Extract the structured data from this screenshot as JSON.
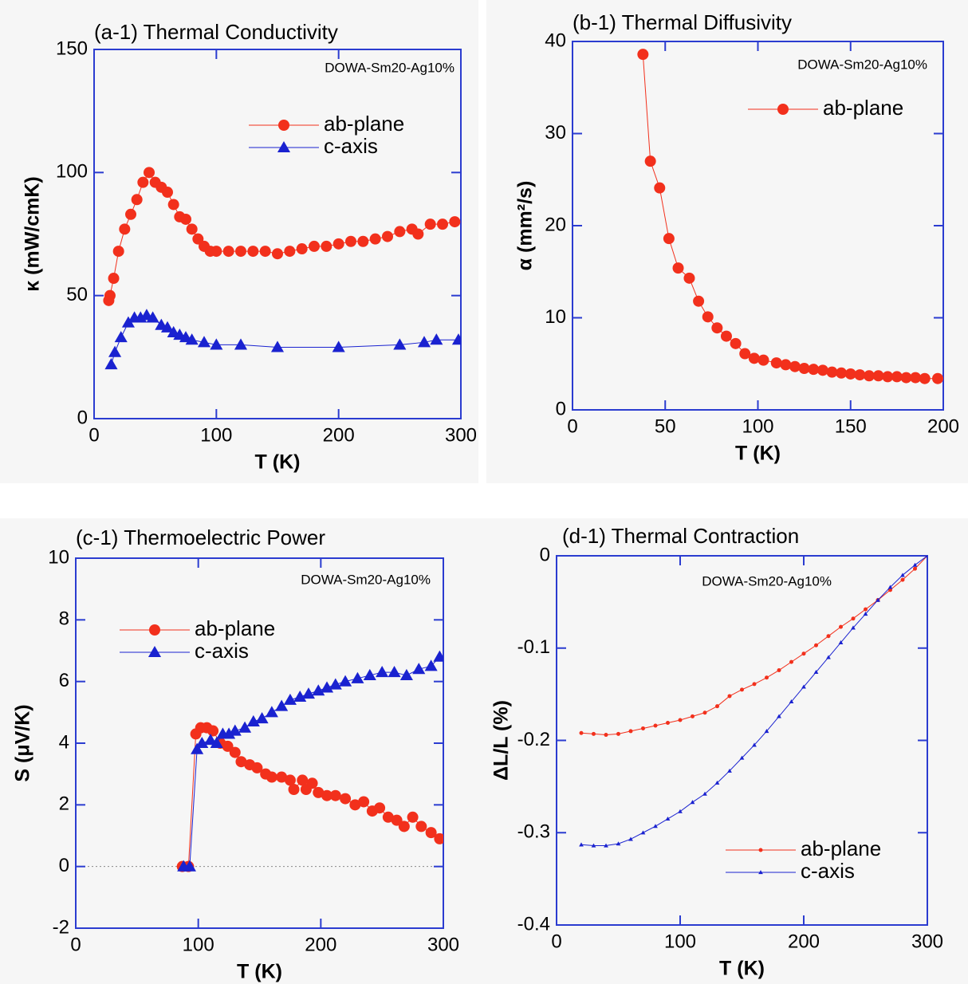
{
  "chart_data": [
    {
      "type": "line",
      "title": "(a-1) Thermal Conductivity",
      "annotation": "DOWA-Sm20-Ag10%",
      "x_label": "T (K)",
      "y_label": "κ (mW/cmK)",
      "xlim": [
        0,
        300
      ],
      "xticks": [
        0,
        100,
        200,
        300
      ],
      "ylim": [
        0,
        150
      ],
      "yticks": [
        0,
        50,
        100,
        150
      ],
      "series": [
        {
          "name": "ab-plane",
          "color": "#f2301c",
          "marker": "circle",
          "x": [
            12,
            13,
            16,
            20,
            25,
            30,
            35,
            40,
            45,
            50,
            55,
            60,
            65,
            70,
            75,
            80,
            85,
            90,
            95,
            100,
            110,
            120,
            130,
            140,
            150,
            160,
            170,
            180,
            190,
            200,
            210,
            220,
            230,
            240,
            250,
            260,
            265,
            275,
            285,
            295
          ],
          "values": [
            48,
            50,
            57,
            68,
            77,
            83,
            89,
            96,
            100,
            96,
            94,
            92,
            87,
            82,
            81,
            77,
            73,
            70,
            68,
            68,
            68,
            68,
            68,
            68,
            67,
            68,
            69,
            70,
            70,
            71,
            72,
            72,
            73,
            74,
            76,
            77,
            75,
            79,
            79,
            80
          ]
        },
        {
          "name": "c-axis",
          "color": "#1a22d0",
          "marker": "triangle",
          "x": [
            14,
            17,
            22,
            28,
            33,
            38,
            43,
            48,
            55,
            60,
            65,
            70,
            75,
            80,
            90,
            100,
            120,
            150,
            200,
            250,
            270,
            280,
            298
          ],
          "values": [
            22,
            27,
            33,
            39,
            41,
            41,
            42,
            41,
            38,
            37,
            35,
            34,
            33,
            32,
            31,
            30,
            30,
            29,
            29,
            30,
            31,
            32,
            32
          ]
        }
      ]
    },
    {
      "type": "line",
      "title": "(b-1) Thermal Diffusivity",
      "annotation": "DOWA-Sm20-Ag10%",
      "x_label": "T (K)",
      "y_label": "α (mm²/s)",
      "xlim": [
        0,
        200
      ],
      "xticks": [
        0,
        50,
        100,
        150,
        200
      ],
      "ylim": [
        0,
        40
      ],
      "yticks": [
        0,
        10,
        20,
        30,
        40
      ],
      "series": [
        {
          "name": "ab-plane",
          "color": "#f2301c",
          "marker": "circle",
          "x": [
            38,
            42,
            47,
            52,
            57,
            63,
            68,
            73,
            78,
            83,
            88,
            93,
            98,
            103,
            110,
            115,
            120,
            125,
            130,
            135,
            140,
            145,
            150,
            155,
            160,
            165,
            170,
            175,
            180,
            185,
            190,
            197
          ],
          "values": [
            38.6,
            27,
            24.1,
            18.6,
            15.4,
            14.3,
            11.8,
            10.1,
            8.9,
            8,
            7.2,
            6.1,
            5.6,
            5.4,
            5.1,
            4.9,
            4.7,
            4.5,
            4.4,
            4.3,
            4.1,
            4,
            3.9,
            3.8,
            3.7,
            3.7,
            3.6,
            3.6,
            3.5,
            3.5,
            3.4,
            3.4
          ]
        }
      ]
    },
    {
      "type": "line",
      "title": "(c-1) Thermoelectric Power",
      "annotation": "DOWA-Sm20-Ag10%",
      "x_label": "T (K)",
      "y_label": "S (μV/K)",
      "xlim": [
        0,
        300
      ],
      "xticks": [
        0,
        100,
        200,
        300
      ],
      "ylim": [
        -2,
        10
      ],
      "yticks": [
        -2,
        0,
        2,
        4,
        6,
        8,
        10
      ],
      "zero_line": true,
      "series": [
        {
          "name": "ab-plane",
          "color": "#f2301c",
          "marker": "circle",
          "x": [
            87,
            92,
            98,
            102,
            107,
            112,
            118,
            124,
            130,
            135,
            142,
            148,
            155,
            160,
            168,
            175,
            178,
            185,
            188,
            193,
            198,
            205,
            212,
            220,
            228,
            235,
            242,
            248,
            255,
            262,
            268,
            275,
            282,
            290,
            297
          ],
          "values": [
            0,
            0,
            4.3,
            4.5,
            4.5,
            4.4,
            4.0,
            3.9,
            3.7,
            3.4,
            3.3,
            3.2,
            3.0,
            2.9,
            2.9,
            2.8,
            2.5,
            2.8,
            2.5,
            2.7,
            2.4,
            2.3,
            2.3,
            2.2,
            2.0,
            2.1,
            1.8,
            1.9,
            1.6,
            1.5,
            1.3,
            1.6,
            1.3,
            1.1,
            0.9
          ]
        },
        {
          "name": "c-axis",
          "color": "#1a22d0",
          "marker": "triangle",
          "x": [
            88,
            93,
            99,
            103,
            110,
            115,
            120,
            125,
            130,
            138,
            145,
            152,
            160,
            168,
            175,
            183,
            190,
            198,
            205,
            212,
            220,
            230,
            240,
            250,
            260,
            270,
            280,
            290,
            297
          ],
          "values": [
            0,
            0,
            3.8,
            4.0,
            4.1,
            4.0,
            4.3,
            4.3,
            4.4,
            4.5,
            4.7,
            4.8,
            5.0,
            5.2,
            5.4,
            5.5,
            5.6,
            5.7,
            5.8,
            5.9,
            6.0,
            6.1,
            6.2,
            6.3,
            6.3,
            6.2,
            6.4,
            6.5,
            6.8
          ]
        }
      ]
    },
    {
      "type": "line",
      "title": "(d-1) Thermal Contraction",
      "annotation": "DOWA-Sm20-Ag10%",
      "x_label": "T (K)",
      "y_label": "ΔL/L (%)",
      "xlim": [
        0,
        300
      ],
      "xticks": [
        0,
        100,
        200,
        300
      ],
      "ylim": [
        -0.4,
        0
      ],
      "yticks": [
        -0.4,
        -0.3,
        -0.2,
        -0.1,
        0
      ],
      "series": [
        {
          "name": "ab-plane",
          "color": "#f2301c",
          "marker": "circle",
          "x": [
            20,
            30,
            40,
            50,
            60,
            70,
            80,
            90,
            100,
            110,
            120,
            130,
            140,
            150,
            160,
            170,
            180,
            190,
            200,
            210,
            220,
            230,
            240,
            250,
            260,
            270,
            280,
            290,
            300
          ],
          "values": [
            -0.192,
            -0.193,
            -0.194,
            -0.193,
            -0.19,
            -0.187,
            -0.184,
            -0.181,
            -0.178,
            -0.174,
            -0.17,
            -0.163,
            -0.152,
            -0.145,
            -0.139,
            -0.132,
            -0.124,
            -0.115,
            -0.106,
            -0.097,
            -0.087,
            -0.077,
            -0.068,
            -0.058,
            -0.048,
            -0.037,
            -0.026,
            -0.014,
            0
          ]
        },
        {
          "name": "c-axis",
          "color": "#1a22d0",
          "marker": "triangle",
          "x": [
            20,
            30,
            40,
            50,
            60,
            70,
            80,
            90,
            100,
            110,
            120,
            130,
            140,
            150,
            160,
            170,
            180,
            190,
            200,
            210,
            220,
            230,
            240,
            250,
            260,
            270,
            280,
            290,
            300
          ],
          "values": [
            -0.313,
            -0.314,
            -0.314,
            -0.312,
            -0.307,
            -0.3,
            -0.293,
            -0.285,
            -0.277,
            -0.267,
            -0.258,
            -0.246,
            -0.233,
            -0.219,
            -0.205,
            -0.19,
            -0.174,
            -0.158,
            -0.142,
            -0.126,
            -0.11,
            -0.094,
            -0.078,
            -0.063,
            -0.048,
            -0.034,
            -0.021,
            -0.01,
            0
          ]
        }
      ]
    }
  ]
}
